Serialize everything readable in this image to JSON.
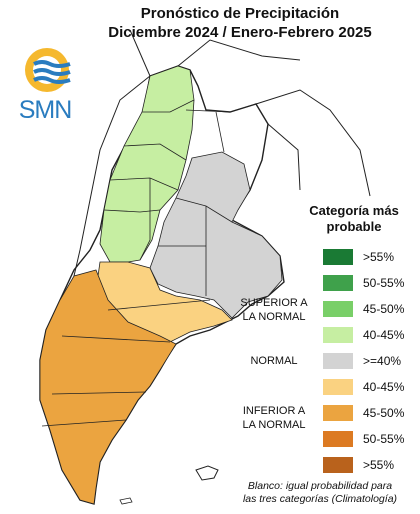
{
  "title": {
    "line1": "Pronóstico de Precipitación",
    "line2": "Diciembre 2024 / Enero-Febrero 2025"
  },
  "logo": {
    "text": "SMN",
    "icon": "smn-sun-waves-logo",
    "colors": {
      "sun": "#f5b82e",
      "waves": "#2a7cbf"
    }
  },
  "legend": {
    "title_line1": "Categoría más",
    "title_line2": "probable",
    "groups": {
      "superior_line1": "SUPERIOR A",
      "superior_line2": "LA NORMAL",
      "normal": "NORMAL",
      "inferior_line1": "INFERIOR A",
      "inferior_line2": "LA NORMAL"
    },
    "items": [
      {
        "label": ">55%",
        "color": "#1a7a34"
      },
      {
        "label": "50-55%",
        "color": "#3fa14b"
      },
      {
        "label": "45-50%",
        "color": "#79cf68"
      },
      {
        "label": "40-45%",
        "color": "#c6eea2"
      },
      {
        "label": ">=40%",
        "color": "#d3d3d3"
      },
      {
        "label": "40-45%",
        "color": "#fad281"
      },
      {
        "label": "45-50%",
        "color": "#eba440"
      },
      {
        "label": "50-55%",
        "color": "#dc7a22"
      },
      {
        "label": ">55%",
        "color": "#b9621c"
      }
    ]
  },
  "note": {
    "line1": "Blanco: igual probabilidad para",
    "line2": "las tres categorías (Climatología)"
  },
  "map": {
    "region_colors": {
      "superior_40_45": "#c6eea2",
      "normal": "#d3d3d3",
      "inferior_40_45": "#fad281",
      "inferior_45_50": "#eba440",
      "climatology": "#ffffff",
      "borders": "#222222"
    }
  }
}
